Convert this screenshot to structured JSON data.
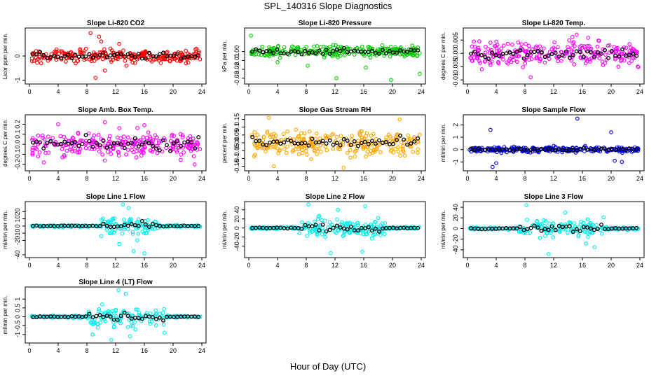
{
  "page": {
    "title": "SPL_140316  Slope Diagnostics",
    "xlabel": "Hour of Day (UTC)"
  },
  "chart_data": [
    {
      "type": "scatter",
      "title": "Slope Li-820 CO2",
      "ylabel": "Licor ppm per min.",
      "color": "#ff0000",
      "xlim": [
        0,
        24
      ],
      "ylim": [
        -1.1,
        1.1
      ],
      "yticks": [
        -1,
        0
      ],
      "spread": 0.25,
      "outliers": [
        [
          8.5,
          0.95
        ],
        [
          9.2,
          -0.9
        ],
        [
          10,
          0.6
        ],
        [
          12.5,
          0.5
        ],
        [
          9.7,
          0.8
        ],
        [
          13.5,
          -0.4
        ],
        [
          10.5,
          -0.6
        ]
      ]
    },
    {
      "type": "scatter",
      "title": "Slope Li-820 Pressure",
      "ylabel": "kPa per min.",
      "color": "#00cc00",
      "xlim": [
        0,
        24
      ],
      "ylim": [
        -0.035,
        0.025
      ],
      "yticks": [
        -0.03,
        -0.02,
        -0.01,
        0.0
      ],
      "spread": 0.006,
      "outliers": [
        [
          0.3,
          0.018
        ],
        [
          8.2,
          -0.016
        ],
        [
          12.2,
          -0.03
        ],
        [
          16.3,
          -0.018
        ],
        [
          19.8,
          -0.032
        ],
        [
          23.8,
          -0.025
        ],
        [
          4,
          -0.012
        ]
      ]
    },
    {
      "type": "scatter",
      "title": "Slope Li-820 Temp.",
      "ylabel": "degrees C per min.",
      "color": "#ff00ff",
      "xlim": [
        0,
        24
      ],
      "ylim": [
        -0.011,
        0.009
      ],
      "yticks": [
        -0.01,
        -0.005,
        0.0,
        0.005
      ],
      "spread": 0.004,
      "outliers": [
        [
          2,
          -0.006
        ],
        [
          8.8,
          -0.009
        ],
        [
          15.2,
          0.007
        ],
        [
          3.2,
          0.004
        ],
        [
          21,
          -0.005
        ]
      ]
    },
    {
      "type": "scatter",
      "title": "Slope Amb. Box Temp.",
      "ylabel": "degrees C per min.",
      "color": "#ff00ff",
      "xlim": [
        0,
        24
      ],
      "ylim": [
        -0.25,
        0.28
      ],
      "yticks": [
        -0.2,
        -0.1,
        0.0,
        0.1,
        0.2
      ],
      "spread": 0.12,
      "outliers": [
        [
          4,
          0.2
        ],
        [
          10.5,
          0.22
        ],
        [
          16,
          0.19
        ],
        [
          23,
          -0.2
        ],
        [
          2,
          -0.18
        ]
      ]
    },
    {
      "type": "scatter",
      "title": "Slope Gas Stream RH",
      "ylabel": "percent per min.",
      "color": "#ffa500",
      "xlim": [
        0,
        24
      ],
      "ylim": [
        -0.17,
        0.17
      ],
      "yticks": [
        -0.15,
        -0.1,
        -0.05,
        0.0,
        0.05,
        0.1,
        0.15
      ],
      "spread": 0.07,
      "outliers": [
        [
          2.8,
          0.16
        ],
        [
          3.5,
          -0.15
        ],
        [
          13.2,
          -0.16
        ],
        [
          21,
          0.15
        ]
      ]
    },
    {
      "type": "scatter",
      "title": "Slope Sample Flow",
      "ylabel": "ml/min per min.",
      "color": "#0000ee",
      "xlim": [
        0,
        24
      ],
      "ylim": [
        -1.6,
        2.7
      ],
      "yticks": [
        -1,
        0,
        1,
        2
      ],
      "spread": 0.2,
      "outliers": [
        [
          3.2,
          1.6
        ],
        [
          4,
          -1.1
        ],
        [
          15.3,
          2.5
        ],
        [
          20,
          1.4
        ],
        [
          21.5,
          -1.0
        ],
        [
          3.5,
          -1.4
        ],
        [
          20.5,
          -0.9
        ]
      ]
    },
    {
      "type": "scatter",
      "title": "Slope Line 1 Flow",
      "ylabel": "ml/min per min.",
      "color": "#00eeee",
      "xlim": [
        0,
        24
      ],
      "ylim": [
        -42,
        32
      ],
      "yticks": [
        -40,
        -20,
        -10,
        0,
        10,
        20
      ],
      "spread": 1.2,
      "centerSpread": 12,
      "centerRange": [
        10,
        18
      ],
      "outliers": [
        [
          13,
          30
        ],
        [
          12.5,
          -25
        ],
        [
          14.5,
          -35
        ],
        [
          16,
          -38
        ],
        [
          13.8,
          25
        ],
        [
          15,
          -20
        ]
      ]
    },
    {
      "type": "scatter",
      "title": "Slope Line 2 Flow",
      "ylabel": "ml/min per min.",
      "color": "#00eeee",
      "xlim": [
        0,
        24
      ],
      "ylim": [
        -62,
        55
      ],
      "yticks": [
        -40,
        -20,
        0,
        20,
        40
      ],
      "spread": 2,
      "centerSpread": 18,
      "centerRange": [
        7,
        19
      ],
      "outliers": [
        [
          8.3,
          52
        ],
        [
          11.4,
          -55
        ],
        [
          15.8,
          -52
        ],
        [
          16.2,
          48
        ],
        [
          18,
          22
        ],
        [
          12.4,
          40
        ]
      ]
    },
    {
      "type": "scatter",
      "title": "Slope Line 3 Flow",
      "ylabel": "ml/min per min.",
      "color": "#00eeee",
      "xlim": [
        0,
        24
      ],
      "ylim": [
        -52,
        48
      ],
      "yticks": [
        -40,
        -20,
        0,
        20,
        40
      ],
      "spread": 2,
      "centerSpread": 14,
      "centerRange": [
        7,
        19
      ],
      "outliers": [
        [
          8.2,
          44
        ],
        [
          11.3,
          -48
        ],
        [
          13.6,
          30
        ],
        [
          17.7,
          -35
        ],
        [
          16.5,
          -28
        ]
      ]
    },
    {
      "type": "scatter",
      "title": "Slope Line 4 (LT) Flow",
      "ylabel": "ml/min per min.",
      "color": "#00eeee",
      "xlim": [
        0,
        24
      ],
      "ylim": [
        -1.4,
        1.6
      ],
      "yticks": [
        -1.0,
        -0.5,
        0.0,
        0.5,
        1.0
      ],
      "spread": 0.06,
      "centerSpread": 0.5,
      "centerRange": [
        8,
        19
      ],
      "outliers": [
        [
          12.4,
          1.5
        ],
        [
          13.4,
          1.3
        ],
        [
          8.8,
          -1.0
        ],
        [
          11.4,
          -1.3
        ],
        [
          14,
          -1.1
        ],
        [
          18.8,
          -0.9
        ]
      ]
    }
  ],
  "xticks": [
    0,
    4,
    8,
    12,
    16,
    20,
    24
  ],
  "black_color": "#000000"
}
